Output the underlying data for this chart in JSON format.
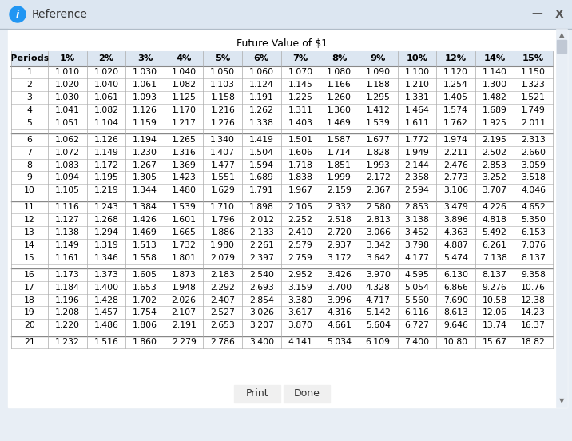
{
  "title": "Future Value of $1",
  "headers": [
    "Periods",
    "1%",
    "2%",
    "3%",
    "4%",
    "5%",
    "6%",
    "7%",
    "8%",
    "9%",
    "10%",
    "12%",
    "14%",
    "15%"
  ],
  "rows": [
    [
      1,
      1.01,
      1.02,
      1.03,
      1.04,
      1.05,
      1.06,
      1.07,
      1.08,
      1.09,
      1.1,
      1.12,
      1.14,
      1.15
    ],
    [
      2,
      1.02,
      1.04,
      1.061,
      1.082,
      1.103,
      1.124,
      1.145,
      1.166,
      1.188,
      1.21,
      1.254,
      1.3,
      1.323
    ],
    [
      3,
      1.03,
      1.061,
      1.093,
      1.125,
      1.158,
      1.191,
      1.225,
      1.26,
      1.295,
      1.331,
      1.405,
      1.482,
      1.521
    ],
    [
      4,
      1.041,
      1.082,
      1.126,
      1.17,
      1.216,
      1.262,
      1.311,
      1.36,
      1.412,
      1.464,
      1.574,
      1.689,
      1.749
    ],
    [
      5,
      1.051,
      1.104,
      1.159,
      1.217,
      1.276,
      1.338,
      1.403,
      1.469,
      1.539,
      1.611,
      1.762,
      1.925,
      2.011
    ],
    [
      6,
      1.062,
      1.126,
      1.194,
      1.265,
      1.34,
      1.419,
      1.501,
      1.587,
      1.677,
      1.772,
      1.974,
      2.195,
      2.313
    ],
    [
      7,
      1.072,
      1.149,
      1.23,
      1.316,
      1.407,
      1.504,
      1.606,
      1.714,
      1.828,
      1.949,
      2.211,
      2.502,
      2.66
    ],
    [
      8,
      1.083,
      1.172,
      1.267,
      1.369,
      1.477,
      1.594,
      1.718,
      1.851,
      1.993,
      2.144,
      2.476,
      2.853,
      3.059
    ],
    [
      9,
      1.094,
      1.195,
      1.305,
      1.423,
      1.551,
      1.689,
      1.838,
      1.999,
      2.172,
      2.358,
      2.773,
      3.252,
      3.518
    ],
    [
      10,
      1.105,
      1.219,
      1.344,
      1.48,
      1.629,
      1.791,
      1.967,
      2.159,
      2.367,
      2.594,
      3.106,
      3.707,
      4.046
    ],
    [
      11,
      1.116,
      1.243,
      1.384,
      1.539,
      1.71,
      1.898,
      2.105,
      2.332,
      2.58,
      2.853,
      3.479,
      4.226,
      4.652
    ],
    [
      12,
      1.127,
      1.268,
      1.426,
      1.601,
      1.796,
      2.012,
      2.252,
      2.518,
      2.813,
      3.138,
      3.896,
      4.818,
      5.35
    ],
    [
      13,
      1.138,
      1.294,
      1.469,
      1.665,
      1.886,
      2.133,
      2.41,
      2.72,
      3.066,
      3.452,
      4.363,
      5.492,
      6.153
    ],
    [
      14,
      1.149,
      1.319,
      1.513,
      1.732,
      1.98,
      2.261,
      2.579,
      2.937,
      3.342,
      3.798,
      4.887,
      6.261,
      7.076
    ],
    [
      15,
      1.161,
      1.346,
      1.558,
      1.801,
      2.079,
      2.397,
      2.759,
      3.172,
      3.642,
      4.177,
      5.474,
      7.138,
      8.137
    ],
    [
      16,
      1.173,
      1.373,
      1.605,
      1.873,
      2.183,
      2.54,
      2.952,
      3.426,
      3.97,
      4.595,
      6.13,
      8.137,
      9.358
    ],
    [
      17,
      1.184,
      1.4,
      1.653,
      1.948,
      2.292,
      2.693,
      3.159,
      3.7,
      4.328,
      5.054,
      6.866,
      9.276,
      10.76
    ],
    [
      18,
      1.196,
      1.428,
      1.702,
      2.026,
      2.407,
      2.854,
      3.38,
      3.996,
      4.717,
      5.56,
      7.69,
      10.58,
      12.38
    ],
    [
      19,
      1.208,
      1.457,
      1.754,
      2.107,
      2.527,
      3.026,
      3.617,
      4.316,
      5.142,
      6.116,
      8.613,
      12.06,
      14.23
    ],
    [
      20,
      1.22,
      1.486,
      1.806,
      2.191,
      2.653,
      3.207,
      3.87,
      4.661,
      5.604,
      6.727,
      9.646,
      13.74,
      16.37
    ],
    [
      21,
      1.232,
      1.516,
      1.86,
      2.279,
      2.786,
      3.4,
      4.141,
      5.034,
      6.109,
      7.4,
      10.8,
      15.67,
      18.82
    ]
  ],
  "window_bg": "#e8eef5",
  "titlebar_bg": "#dce6f1",
  "content_bg": "#ffffff",
  "header_bg": "#dce6f1",
  "table_border": "#999999",
  "cell_border": "#cccccc",
  "title_fontsize": 9,
  "cell_fontsize": 7.8,
  "header_fontsize": 8.2,
  "window_title": "Reference"
}
